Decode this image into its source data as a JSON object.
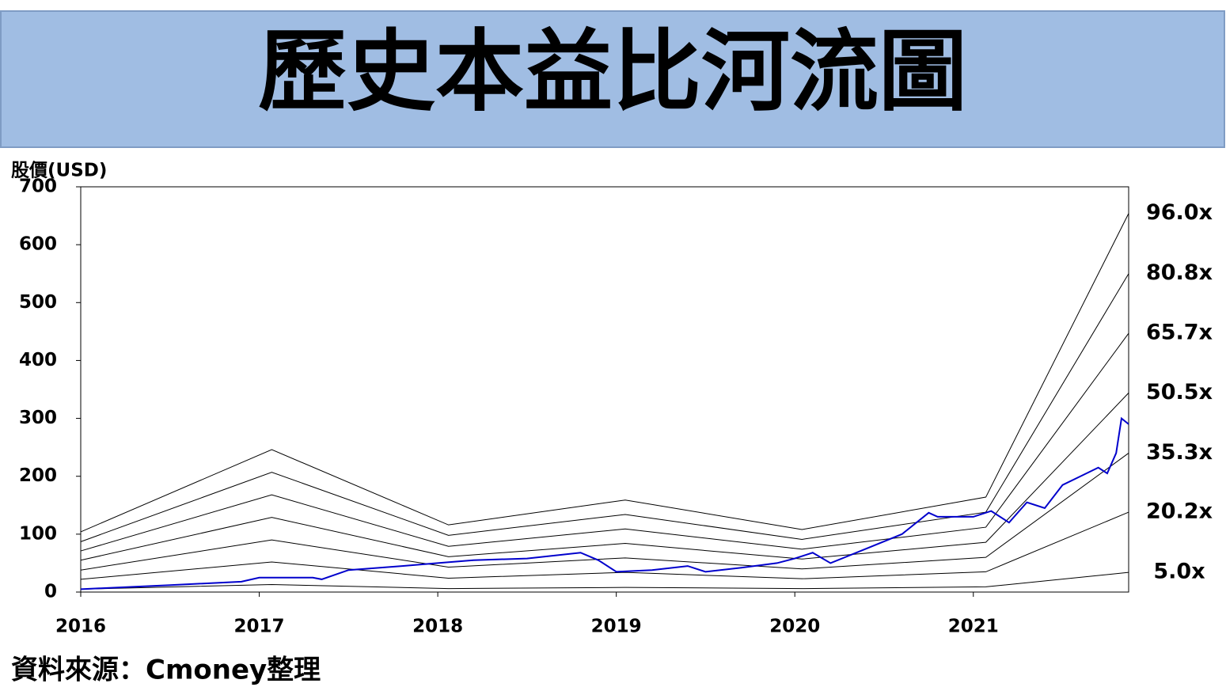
{
  "chart_data": {
    "type": "line",
    "title": "歷史本益比河流圖",
    "y_label": "股價(USD)",
    "source": "資料來源：Cmoney整理",
    "xlim": [
      2016,
      2021.87
    ],
    "xticks": [
      2016,
      2017,
      2018,
      2019,
      2020,
      2021
    ],
    "ylim": [
      0,
      700
    ],
    "yticks": [
      0,
      100,
      200,
      300,
      400,
      500,
      600,
      700
    ],
    "series": [
      {
        "name": "96.0x",
        "color": "#000000",
        "x": [
          2016,
          2017.07,
          2018.06,
          2019.05,
          2020.04,
          2021.07,
          2021.87
        ],
        "values": [
          104,
          246,
          116,
          159,
          108,
          164,
          654
        ]
      },
      {
        "name": "80.8x",
        "color": "#000000",
        "x": [
          2016,
          2017.07,
          2018.06,
          2019.05,
          2020.04,
          2021.07,
          2021.87
        ],
        "values": [
          87,
          207,
          98,
          134,
          91,
          138,
          550
        ]
      },
      {
        "name": "65.7x",
        "color": "#000000",
        "x": [
          2016,
          2017.07,
          2018.06,
          2019.05,
          2020.04,
          2021.07,
          2021.87
        ],
        "values": [
          71,
          168,
          79,
          109,
          74,
          112,
          447
        ]
      },
      {
        "name": "50.5x",
        "color": "#000000",
        "x": [
          2016,
          2017.07,
          2018.06,
          2019.05,
          2020.04,
          2021.07,
          2021.87
        ],
        "values": [
          55,
          129,
          61,
          84,
          57,
          86,
          344
        ]
      },
      {
        "name": "35.3x",
        "color": "#000000",
        "x": [
          2016,
          2017.07,
          2018.06,
          2019.05,
          2020.04,
          2021.07,
          2021.87
        ],
        "values": [
          38,
          90,
          43,
          59,
          40,
          60,
          240
        ]
      },
      {
        "name": "20.2x",
        "color": "#000000",
        "x": [
          2016,
          2017.07,
          2018.06,
          2019.05,
          2020.04,
          2021.07,
          2021.87
        ],
        "values": [
          22,
          52,
          24,
          34,
          23,
          35,
          138
        ]
      },
      {
        "name": "5.0x",
        "color": "#000000",
        "x": [
          2016,
          2017.07,
          2018.06,
          2019.05,
          2020.04,
          2021.07,
          2021.87
        ],
        "values": [
          5,
          13,
          6,
          8,
          6,
          9,
          34
        ]
      },
      {
        "color": "#0000cc",
        "x": [
          2016.0,
          2016.5,
          2016.9,
          2017.0,
          2017.3,
          2017.35,
          2017.5,
          2017.8,
          2018.0,
          2018.2,
          2018.5,
          2018.8,
          2018.9,
          2019.0,
          2019.2,
          2019.4,
          2019.5,
          2019.7,
          2019.9,
          2020.0,
          2020.1,
          2020.2,
          2020.4,
          2020.6,
          2020.75,
          2020.8,
          2021.0,
          2021.1,
          2021.2,
          2021.3,
          2021.4,
          2021.5,
          2021.6,
          2021.7,
          2021.75,
          2021.8,
          2021.83,
          2021.87
        ],
        "values": [
          5,
          12,
          18,
          25,
          25,
          22,
          38,
          45,
          50,
          55,
          58,
          68,
          55,
          35,
          38,
          45,
          35,
          42,
          50,
          58,
          68,
          50,
          75,
          100,
          137,
          130,
          130,
          140,
          120,
          155,
          145,
          185,
          200,
          215,
          205,
          240,
          300,
          290
        ]
      }
    ]
  }
}
